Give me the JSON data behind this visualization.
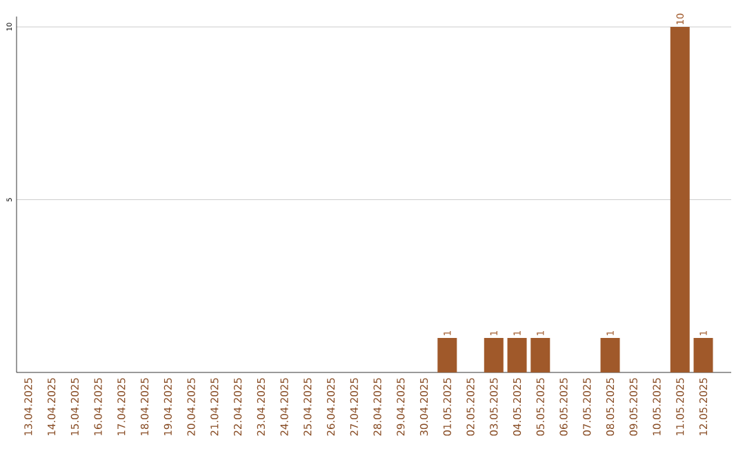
{
  "chart_data": {
    "type": "bar",
    "categories": [
      "13.04.2025",
      "14.04.2025",
      "15.04.2025",
      "16.04.2025",
      "17.04.2025",
      "18.04.2025",
      "19.04.2025",
      "20.04.2025",
      "21.04.2025",
      "22.04.2025",
      "23.04.2025",
      "24.04.2025",
      "25.04.2025",
      "26.04.2025",
      "27.04.2025",
      "28.04.2025",
      "29.04.2025",
      "30.04.2025",
      "01.05.2025",
      "02.05.2025",
      "03.05.2025",
      "04.05.2025",
      "05.05.2025",
      "06.05.2025",
      "07.05.2025",
      "08.05.2025",
      "09.05.2025",
      "10.05.2025",
      "11.05.2025",
      "12.05.2025"
    ],
    "values": [
      0,
      0,
      0,
      0,
      0,
      0,
      0,
      0,
      0,
      0,
      0,
      0,
      0,
      0,
      0,
      0,
      0,
      0,
      1,
      0,
      1,
      1,
      1,
      0,
      0,
      1,
      0,
      0,
      10,
      1
    ],
    "value_labels": [
      null,
      null,
      null,
      null,
      null,
      null,
      null,
      null,
      null,
      null,
      null,
      null,
      null,
      null,
      null,
      null,
      null,
      null,
      "1",
      null,
      "1",
      "1",
      "1",
      null,
      null,
      "1",
      null,
      null,
      "10",
      "1"
    ],
    "color": "#a0592a",
    "ylim": [
      0,
      10.3
    ],
    "yticks": [
      5,
      10
    ],
    "grid": "y"
  }
}
